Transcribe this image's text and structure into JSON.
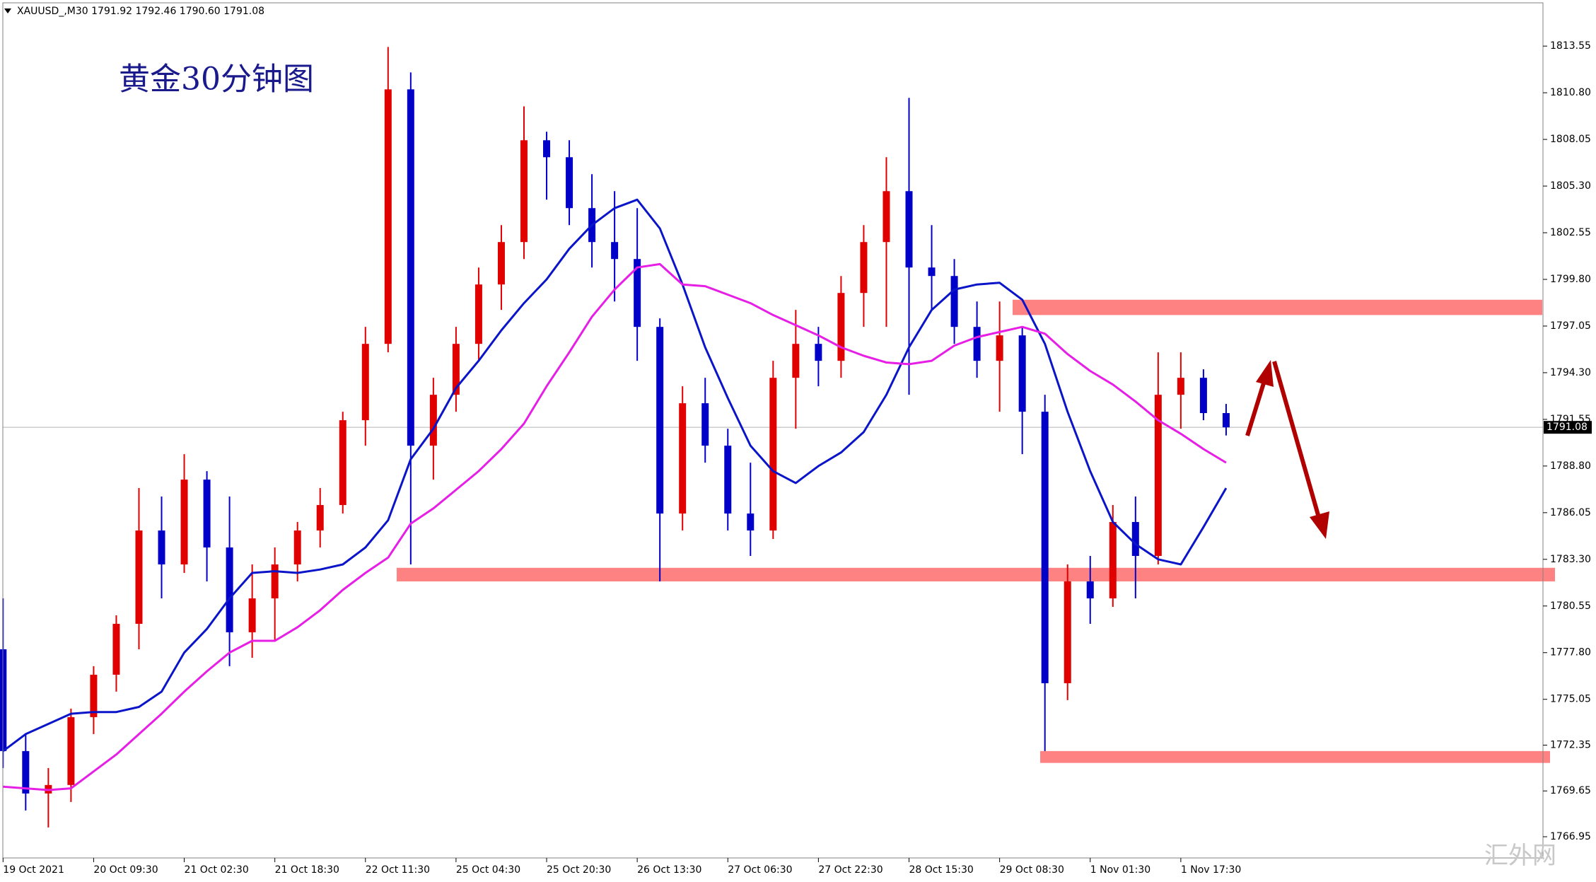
{
  "chart_data": {
    "type": "candlestick",
    "header": "XAUUSD_,M30  1791.92 1792.46 1790.60 1791.08",
    "title": "黄金30分钟图",
    "watermark": "汇外网",
    "categories": [
      "19 Oct 2021",
      null,
      null,
      null,
      "20 Oct 09:30",
      null,
      null,
      null,
      "21 Oct 02:30",
      null,
      null,
      null,
      "21 Oct 18:30",
      null,
      null,
      null,
      "22 Oct 11:30",
      null,
      null,
      null,
      "25 Oct 04:30",
      null,
      null,
      null,
      "25 Oct 20:30",
      null,
      null,
      null,
      "26 Oct 13:30",
      null,
      null,
      null,
      "27 Oct 06:30",
      null,
      null,
      null,
      "27 Oct 22:30",
      null,
      null,
      null,
      "28 Oct 15:30",
      null,
      null,
      null,
      "29 Oct 08:30",
      null,
      null,
      null,
      "1 Nov 01:30",
      null,
      null,
      null,
      "1 Nov 17:30",
      null,
      null
    ],
    "open": [
      1778,
      1772,
      1769.5,
      1770,
      1774,
      1776.5,
      1779.5,
      1785,
      1783,
      1788,
      1784,
      1779,
      1781,
      1783,
      1785,
      1786.5,
      1791.5,
      1796,
      1811,
      1790,
      1793,
      1796,
      1799.5,
      1802,
      1808,
      1807,
      1804,
      1802,
      1801,
      1797,
      1786,
      1792.5,
      1790,
      1786,
      1785,
      1794,
      1796,
      1795,
      1799,
      1802,
      1805,
      1800.5,
      1800,
      1797,
      1795,
      1796.5,
      1792,
      1776,
      1782,
      1781,
      1785.5,
      1783.5,
      1793,
      1794,
      1791.92
    ],
    "high": [
      1781,
      1773,
      1771,
      1774.5,
      1777,
      1780,
      1787.5,
      1787,
      1789.5,
      1788.5,
      1787,
      1783,
      1784,
      1785.5,
      1787.5,
      1792,
      1797,
      1813.5,
      1812,
      1794,
      1797,
      1800.5,
      1803,
      1810,
      1808.5,
      1808,
      1806,
      1805,
      1804,
      1797.5,
      1793.5,
      1794,
      1791,
      1789,
      1795,
      1798,
      1797,
      1800,
      1803,
      1807,
      1810.5,
      1803,
      1801,
      1798.5,
      1798.5,
      1797,
      1793,
      1783,
      1783.5,
      1786.5,
      1787,
      1795.5,
      1795.5,
      1794.5,
      1792.46
    ],
    "low": [
      1771,
      1768.5,
      1767.5,
      1769,
      1773,
      1775.5,
      1778,
      1781,
      1782.5,
      1782,
      1777,
      1777.5,
      1778.5,
      1782,
      1784,
      1786,
      1790,
      1795.5,
      1783,
      1788,
      1792,
      1795,
      1798,
      1801,
      1804.5,
      1803,
      1800.5,
      1798.5,
      1795,
      1782,
      1785,
      1789,
      1785,
      1783.5,
      1784.5,
      1791,
      1793.5,
      1794,
      1797,
      1797,
      1793,
      1798,
      1796,
      1794,
      1792,
      1789.5,
      1772,
      1775,
      1779.5,
      1780.5,
      1781,
      1783,
      1791,
      1791.5,
      1790.6
    ],
    "close": [
      1772,
      1769.5,
      1770,
      1774,
      1776.5,
      1779.5,
      1785,
      1783,
      1788,
      1784,
      1779,
      1781,
      1783,
      1785,
      1786.5,
      1791.5,
      1796,
      1811,
      1790,
      1793,
      1796,
      1799.5,
      1802,
      1808,
      1807,
      1804,
      1802,
      1801,
      1797,
      1786,
      1792.5,
      1790,
      1786,
      1785,
      1794,
      1796,
      1795,
      1799,
      1802,
      1805,
      1800.5,
      1800,
      1797,
      1795,
      1796.5,
      1792,
      1776,
      1782,
      1781,
      1785.5,
      1783.5,
      1793,
      1794,
      1791.92,
      1791.08
    ],
    "up_color": "#e00000",
    "down_color": "#0000c8",
    "moving_averages": [
      {
        "color": "#0a14c8",
        "values": [
          1772,
          1773,
          1773.6,
          1774.2,
          1774.3,
          1774.3,
          1774.6,
          1775.5,
          1777.8,
          1779.2,
          1781,
          1782.5,
          1782.6,
          1782.5,
          1782.7,
          1783,
          1784,
          1785.6,
          1789.2,
          1791,
          1793.4,
          1795,
          1796.8,
          1798.4,
          1799.8,
          1801.6,
          1803,
          1804,
          1804.5,
          1802.8,
          1799.5,
          1795.8,
          1792.8,
          1790,
          1788.5,
          1787.8,
          1788.8,
          1789.6,
          1790.8,
          1793,
          1795.8,
          1798,
          1799.2,
          1799.5,
          1799.6,
          1798.6,
          1796,
          1792,
          1788.5,
          1785.5,
          1784.2,
          1783.3,
          1783,
          1785.2,
          1787.5
        ]
      },
      {
        "color": "#e61ee6",
        "values": [
          1769.9,
          1769.8,
          1769.7,
          1769.8,
          1770.8,
          1771.8,
          1773,
          1774.2,
          1775.5,
          1776.7,
          1777.8,
          1778.5,
          1778.5,
          1779.3,
          1780.3,
          1781.5,
          1782.5,
          1783.4,
          1785.4,
          1786.3,
          1787.4,
          1788.5,
          1789.8,
          1791.3,
          1793.5,
          1795.5,
          1797.6,
          1799.2,
          1800.5,
          1800.7,
          1799.5,
          1799.4,
          1798.9,
          1798.4,
          1797.7,
          1797.1,
          1796.5,
          1795.8,
          1795.3,
          1794.9,
          1794.8,
          1795,
          1795.9,
          1796.4,
          1796.7,
          1797,
          1796.6,
          1795.4,
          1794.4,
          1793.6,
          1792.6,
          1791.5,
          1790.7,
          1789.8,
          1789
        ]
      }
    ],
    "zones": [
      {
        "color": "#ff8282",
        "range": [
          1797.7,
          1798.6
        ]
      },
      {
        "color": "#ff8282",
        "range": [
          1782.0,
          1782.8
        ]
      },
      {
        "color": "#ff8282",
        "range": [
          1771.3,
          1772.0
        ]
      }
    ],
    "current_price": 1791.08,
    "ylim": [
      1765.7,
      1816.1
    ],
    "yticks": [
      1813.55,
      {
        "value": 1810.8,
        "label": "1810.80"
      },
      1808.05,
      {
        "value": 1805.3,
        "label": "1805.30"
      },
      1802.55,
      {
        "value": 1799.8,
        "label": "1799.80"
      },
      1797.05,
      {
        "value": 1794.3,
        "label": "1794.30"
      },
      1791.55,
      {
        "value": 1788.8,
        "label": "1788.80"
      },
      1786.05,
      {
        "value": 1783.3,
        "label": "1783.30"
      },
      1780.55,
      {
        "value": 1777.8,
        "label": "1777.80"
      },
      1775.05,
      1772.35,
      1769.65,
      1766.95
    ]
  }
}
